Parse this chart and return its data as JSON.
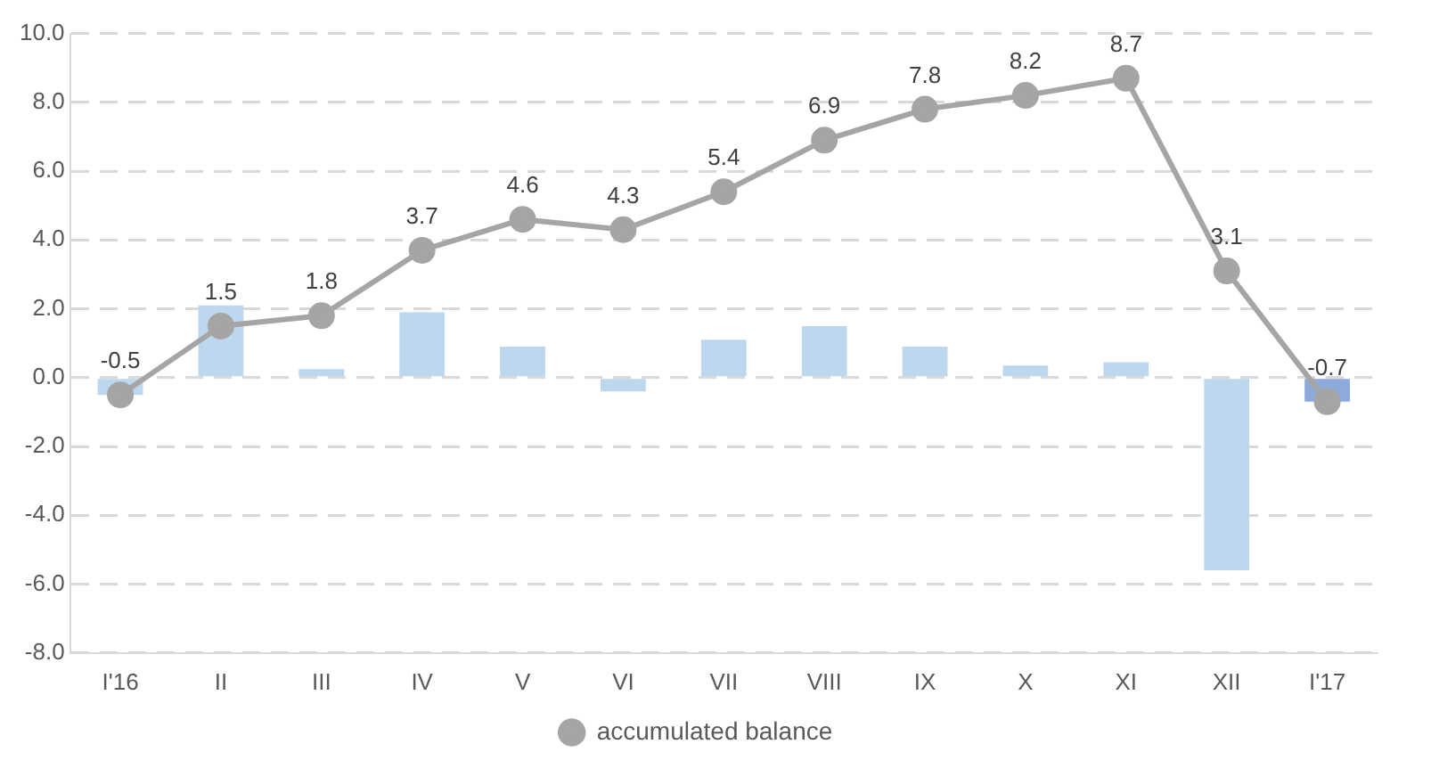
{
  "chart_data": {
    "type": "bar",
    "categories": [
      "I'16",
      "II",
      "III",
      "IV",
      "V",
      "VI",
      "VII",
      "VIII",
      "IX",
      "X",
      "XI",
      "XII",
      "I'17"
    ],
    "series": [
      {
        "colors": [
          "#bdd7ee",
          "#bdd7ee",
          "#bdd7ee",
          "#bdd7ee",
          "#bdd7ee",
          "#bdd7ee",
          "#bdd7ee",
          "#bdd7ee",
          "#bdd7ee",
          "#bdd7ee",
          "#bdd7ee",
          "#bdd7ee",
          "#8eaadb"
        ],
        "values": [
          -0.5,
          2.1,
          0.25,
          1.9,
          0.9,
          -0.4,
          1.1,
          1.5,
          0.9,
          0.35,
          0.45,
          -5.6,
          -0.7
        ]
      },
      {
        "type": "line",
        "name": "accumulated balance",
        "color": "#a5a5a5",
        "marker": "circle",
        "values": [
          -0.5,
          1.5,
          1.8,
          3.7,
          4.6,
          4.3,
          5.4,
          6.9,
          7.8,
          8.2,
          8.7,
          3.1,
          -0.7
        ],
        "value_labels": [
          "-0.5",
          "1.5",
          "1.8",
          "3.7",
          "4.6",
          "4.3",
          "5.4",
          "6.9",
          "7.8",
          "8.2",
          "8.7",
          "3.1",
          "-0.7"
        ]
      }
    ],
    "ylim": [
      -8,
      10
    ],
    "yticks": [
      {
        "value": -8,
        "label": "-8.0"
      },
      {
        "value": -6,
        "label": "-6.0"
      },
      {
        "value": -4,
        "label": "-4.0"
      },
      {
        "value": -2,
        "label": "-2.0"
      },
      {
        "value": 0,
        "label": "0.0"
      },
      {
        "value": 2,
        "label": "2.0"
      },
      {
        "value": 4,
        "label": "4.0"
      },
      {
        "value": 6,
        "label": "6.0"
      },
      {
        "value": 8,
        "label": "8.0"
      },
      {
        "value": 10,
        "label": "10.0"
      }
    ],
    "grid": "y",
    "legend": "bottom"
  }
}
